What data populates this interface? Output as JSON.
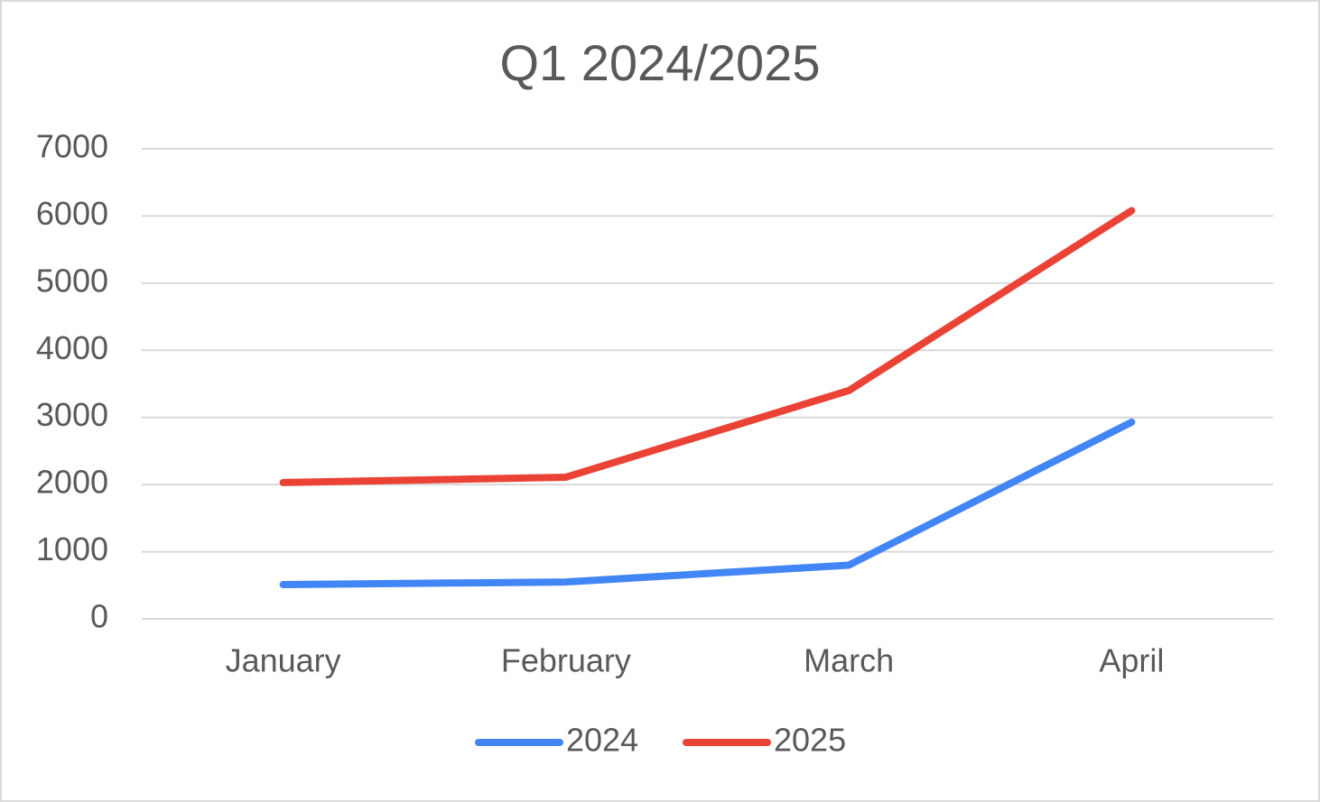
{
  "chart_data": {
    "type": "line",
    "title": "Q1 2024/2025",
    "categories": [
      "January",
      "February",
      "March",
      "April"
    ],
    "series": [
      {
        "name": "2024",
        "color": "#4285f4",
        "values": [
          510,
          550,
          800,
          2930
        ]
      },
      {
        "name": "2025",
        "color": "#ea4335",
        "values": [
          2030,
          2110,
          3400,
          6080
        ]
      }
    ],
    "ylim": [
      0,
      7000
    ],
    "yticks": [
      0,
      1000,
      2000,
      3000,
      4000,
      5000,
      6000,
      7000
    ],
    "grid": true,
    "legend": "bottom"
  }
}
